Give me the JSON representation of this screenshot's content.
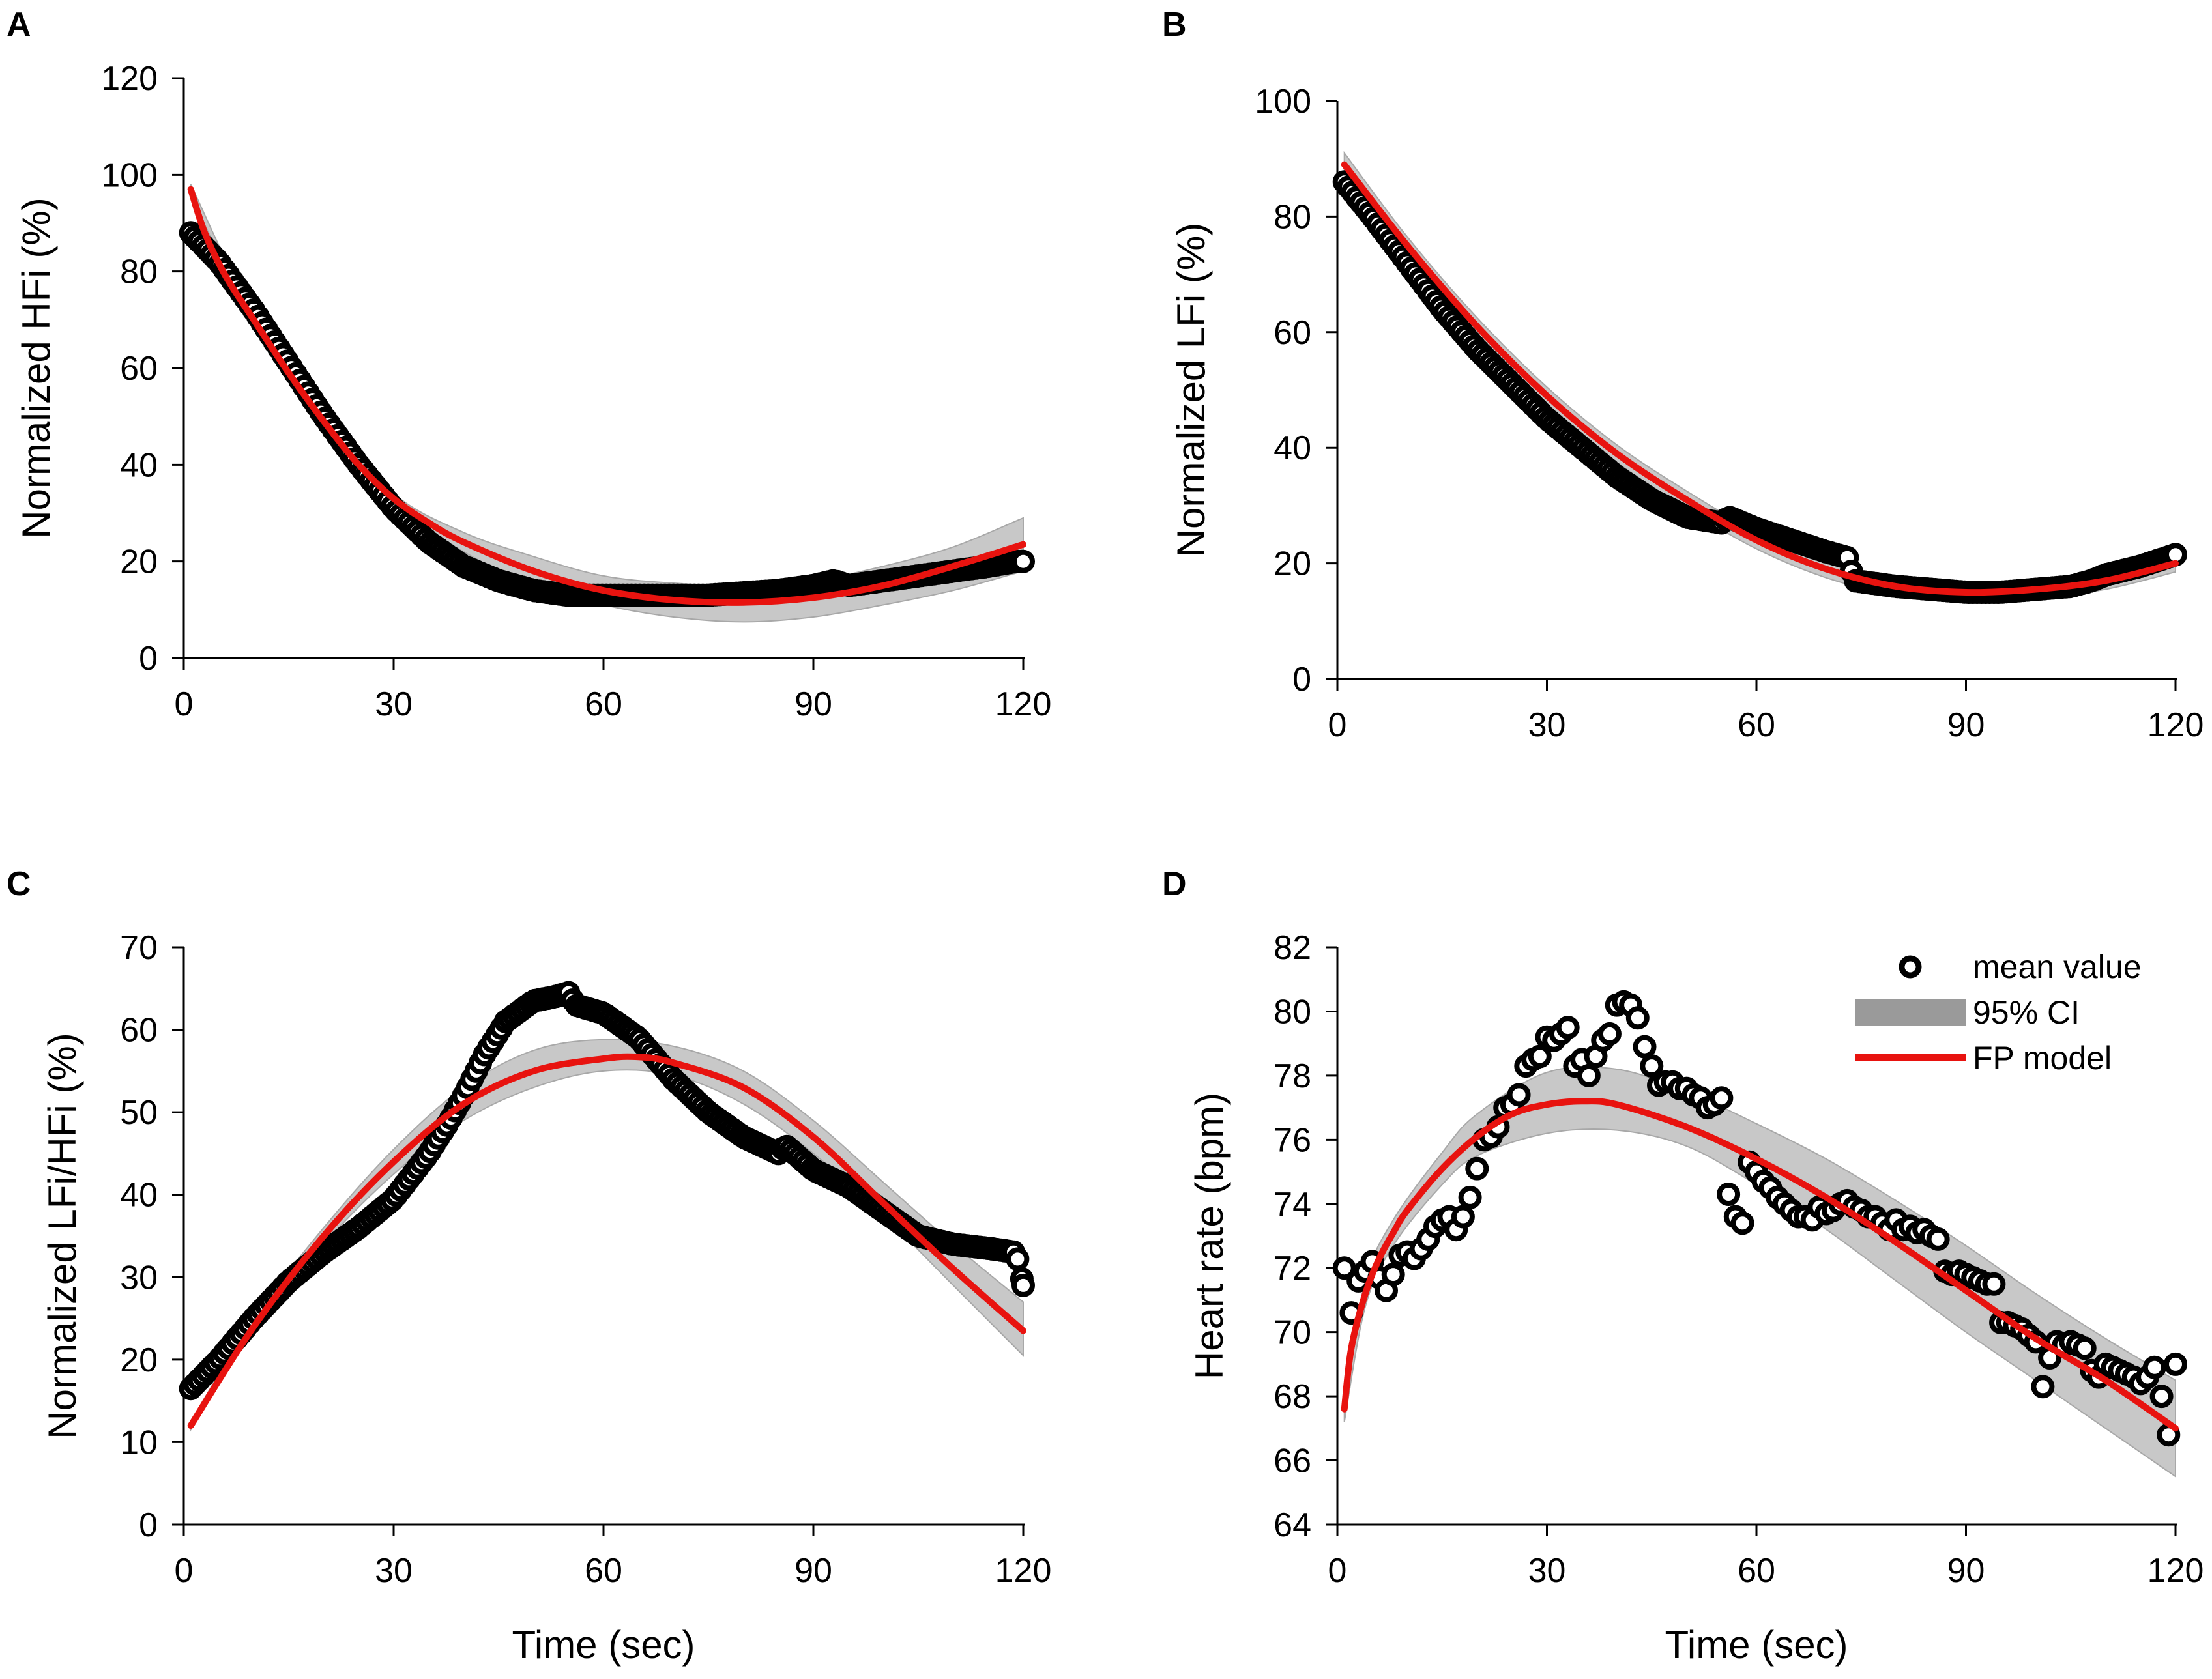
{
  "figure": {
    "description_free": true
  },
  "colors": {
    "model_line": "#e8130f",
    "ci_band": "#c8c8c8",
    "ci_legend": "#9a9a9a",
    "marker_stroke": "#000000",
    "marker_fill": "#ffffff",
    "axis": "#000000"
  },
  "legend": {
    "mean": "mean value",
    "ci": "95% CI",
    "model": "FP model"
  },
  "chart_data": [
    {
      "id": "A",
      "letter": "A",
      "type": "scatter",
      "title": "",
      "xlabel": "",
      "ylabel": "Normalized HFi  (%)",
      "xlim": [
        0,
        120
      ],
      "ylim": [
        0,
        120
      ],
      "xticks": [
        0,
        30,
        60,
        90,
        120
      ],
      "yticks": [
        0,
        20,
        40,
        60,
        80,
        100,
        120
      ],
      "series": [
        {
          "name": "mean value",
          "kind": "markers",
          "x": [
            1,
            5,
            10,
            15,
            20,
            25,
            30,
            35,
            40,
            45,
            50,
            55,
            60,
            65,
            70,
            75,
            80,
            85,
            90,
            93,
            95,
            100,
            105,
            110,
            115,
            119,
            120
          ],
          "y": [
            88,
            82,
            72,
            61,
            50,
            40,
            31,
            24,
            19,
            16,
            14,
            13,
            13,
            13,
            13,
            13,
            13.5,
            14,
            15,
            16,
            15,
            16,
            17,
            18,
            19,
            20,
            20
          ]
        },
        {
          "name": "FP model",
          "kind": "line",
          "x": [
            1,
            3,
            6,
            10,
            15,
            20,
            25,
            30,
            35,
            40,
            50,
            60,
            70,
            80,
            90,
            100,
            110,
            120
          ],
          "y": [
            97,
            88,
            79,
            70,
            59,
            49,
            40,
            33,
            28,
            24,
            18,
            14,
            12,
            11.5,
            12.5,
            15,
            19,
            23.5
          ]
        },
        {
          "name": "95% CI",
          "kind": "band",
          "x": [
            1,
            10,
            20,
            30,
            40,
            50,
            60,
            70,
            80,
            90,
            100,
            110,
            120
          ],
          "lower": [
            96,
            69,
            48,
            32,
            22,
            15,
            11,
            8.5,
            7.5,
            8.5,
            11,
            14,
            18
          ],
          "upper": [
            98,
            71,
            50,
            34,
            26,
            21,
            17,
            15.5,
            15,
            16,
            19,
            23,
            29
          ]
        }
      ]
    },
    {
      "id": "B",
      "letter": "B",
      "type": "scatter",
      "title": "",
      "xlabel": "",
      "ylabel": "Normalized LFi (%)",
      "xlim": [
        0,
        120
      ],
      "ylim": [
        0,
        100
      ],
      "xticks": [
        0,
        30,
        60,
        90,
        120
      ],
      "yticks": [
        0,
        20,
        40,
        60,
        80,
        100
      ],
      "series": [
        {
          "name": "mean value",
          "kind": "markers",
          "x": [
            1,
            5,
            10,
            15,
            20,
            25,
            30,
            35,
            40,
            45,
            50,
            55,
            56,
            60,
            65,
            70,
            73,
            74,
            80,
            85,
            90,
            95,
            100,
            105,
            108,
            110,
            115,
            120
          ],
          "y": [
            86,
            80,
            72,
            64,
            57,
            51,
            45,
            40,
            35,
            31,
            28,
            27,
            28,
            26,
            24,
            22,
            21,
            17,
            16,
            15.5,
            15,
            15,
            15.5,
            16,
            17,
            18,
            19.5,
            21.5
          ]
        },
        {
          "name": "FP model",
          "kind": "line",
          "x": [
            1,
            10,
            20,
            30,
            40,
            50,
            60,
            70,
            80,
            90,
            100,
            110,
            120
          ],
          "y": [
            89,
            75,
            61,
            49,
            39,
            31,
            24,
            19,
            16,
            15,
            15.5,
            17,
            20
          ]
        },
        {
          "name": "95% CI",
          "kind": "band",
          "x": [
            1,
            10,
            20,
            30,
            40,
            50,
            60,
            70,
            80,
            90,
            100,
            110,
            120
          ],
          "lower": [
            87,
            73.5,
            59.5,
            47.5,
            37.5,
            29.5,
            22.5,
            17.5,
            14.5,
            13.5,
            14,
            15.5,
            18.5
          ],
          "upper": [
            91,
            76.5,
            62.5,
            50.5,
            40.5,
            32.5,
            25.5,
            20.5,
            17.5,
            16.5,
            17,
            18.5,
            21.5
          ]
        }
      ]
    },
    {
      "id": "C",
      "letter": "C",
      "type": "scatter",
      "title": "",
      "xlabel": "Time (sec)",
      "ylabel": "Normalized LFi/HFi  (%)",
      "xlim": [
        0,
        120
      ],
      "ylim": [
        0,
        70
      ],
      "xticks": [
        0,
        30,
        60,
        90,
        120
      ],
      "yticks": [
        0,
        10,
        20,
        30,
        40,
        50,
        60,
        70
      ],
      "series": [
        {
          "name": "mean value",
          "kind": "markers",
          "x": [
            1,
            5,
            10,
            15,
            20,
            25,
            30,
            35,
            38,
            40,
            43,
            46,
            50,
            53,
            55,
            56,
            60,
            65,
            70,
            75,
            80,
            85,
            86,
            90,
            95,
            100,
            105,
            110,
            115,
            119,
            120
          ],
          "y": [
            16.5,
            20,
            25,
            29.5,
            33,
            36,
            39.5,
            45,
            49,
            52,
            57,
            61,
            63.5,
            64,
            64.5,
            63,
            62,
            59,
            54,
            50,
            47,
            45,
            46,
            43,
            41,
            38,
            35,
            34,
            33.5,
            33,
            29
          ]
        },
        {
          "name": "FP model",
          "kind": "line",
          "x": [
            1,
            10,
            20,
            30,
            40,
            50,
            60,
            65,
            70,
            80,
            90,
            100,
            110,
            120
          ],
          "y": [
            12,
            24,
            35,
            44,
            51,
            55,
            56.5,
            56.7,
            56,
            53,
            47,
            39,
            31,
            23.5
          ]
        },
        {
          "name": "95% CI",
          "kind": "band",
          "x": [
            1,
            10,
            20,
            30,
            40,
            50,
            60,
            70,
            80,
            90,
            100,
            110,
            120
          ],
          "lower": [
            11.5,
            23.5,
            34,
            42.5,
            49,
            53,
            55,
            54.5,
            51,
            45,
            37.5,
            29,
            20.5
          ],
          "upper": [
            12.5,
            25,
            36,
            45.5,
            53,
            57.5,
            58.8,
            58,
            55,
            49,
            41.5,
            34,
            27
          ]
        }
      ]
    },
    {
      "id": "D",
      "letter": "D",
      "type": "scatter",
      "title": "",
      "xlabel": "Time (sec)",
      "ylabel": "Heart rate (bpm)",
      "xlim": [
        0,
        120
      ],
      "ylim": [
        64,
        82
      ],
      "xticks": [
        0,
        30,
        60,
        90,
        120
      ],
      "yticks": [
        64,
        66,
        68,
        70,
        72,
        74,
        76,
        78,
        80,
        82
      ],
      "legend_position": "top-right",
      "series": [
        {
          "name": "mean value",
          "kind": "markers",
          "x": [
            1,
            2,
            3,
            4,
            5,
            6,
            7,
            8,
            9,
            10,
            11,
            12,
            13,
            14,
            15,
            16,
            17,
            18,
            19,
            20,
            21,
            22,
            23,
            24,
            25,
            26,
            27,
            28,
            29,
            30,
            31,
            32,
            33,
            34,
            35,
            36,
            37,
            38,
            39,
            40,
            41,
            42,
            43,
            44,
            45,
            46,
            47,
            48,
            49,
            50,
            51,
            52,
            53,
            54,
            55,
            56,
            57,
            58,
            59,
            60,
            61,
            62,
            63,
            64,
            65,
            66,
            67,
            68,
            69,
            70,
            71,
            72,
            73,
            74,
            75,
            76,
            77,
            78,
            79,
            80,
            81,
            82,
            83,
            84,
            85,
            86,
            87,
            88,
            89,
            90,
            91,
            92,
            93,
            94,
            95,
            96,
            97,
            98,
            99,
            100,
            101,
            102,
            103,
            104,
            105,
            106,
            107,
            108,
            109,
            110,
            111,
            112,
            113,
            114,
            115,
            116,
            117,
            118,
            119,
            120
          ],
          "y": [
            72.0,
            70.6,
            71.6,
            71.9,
            72.2,
            71.7,
            71.3,
            71.8,
            72.4,
            72.5,
            72.3,
            72.6,
            72.9,
            73.3,
            73.5,
            73.6,
            73.2,
            73.6,
            74.2,
            75.1,
            76.0,
            76.1,
            76.4,
            77.0,
            77.1,
            77.4,
            78.3,
            78.5,
            78.6,
            79.2,
            79.1,
            79.3,
            79.5,
            78.3,
            78.5,
            78.0,
            78.6,
            79.1,
            79.3,
            80.2,
            80.3,
            80.2,
            79.8,
            78.9,
            78.3,
            77.7,
            77.8,
            77.8,
            77.6,
            77.6,
            77.4,
            77.3,
            77.0,
            77.1,
            77.3,
            74.3,
            73.6,
            73.4,
            75.3,
            75.0,
            74.7,
            74.5,
            74.2,
            74.0,
            73.8,
            73.6,
            73.6,
            73.5,
            73.9,
            73.7,
            73.8,
            74.0,
            74.1,
            73.9,
            73.8,
            73.6,
            73.6,
            73.4,
            73.2,
            73.5,
            73.2,
            73.3,
            73.1,
            73.2,
            73.0,
            72.9,
            71.9,
            71.8,
            71.9,
            71.8,
            71.7,
            71.6,
            71.5,
            71.5,
            70.3,
            70.3,
            70.2,
            70.1,
            69.9,
            69.7,
            68.3,
            69.2,
            69.7,
            69.6,
            69.7,
            69.6,
            69.5,
            68.8,
            68.6,
            69.0,
            68.9,
            68.8,
            68.7,
            68.6,
            68.4,
            68.6,
            68.9,
            68.0,
            66.8,
            69.0
          ],
          "xlist_override": null
        },
        {
          "name": "FP model",
          "kind": "line",
          "x": [
            1,
            2,
            4,
            6,
            8,
            10,
            15,
            20,
            25,
            30,
            35,
            40,
            50,
            60,
            70,
            80,
            90,
            100,
            110,
            120
          ],
          "y": [
            67.6,
            69.5,
            71.2,
            72.3,
            73.1,
            73.8,
            75.1,
            76.1,
            76.8,
            77.1,
            77.2,
            77.1,
            76.4,
            75.4,
            74.2,
            72.8,
            71.3,
            69.8,
            68.5,
            67.0
          ]
        },
        {
          "name": "95% CI",
          "kind": "band",
          "x": [
            1,
            4,
            8,
            15,
            20,
            30,
            40,
            50,
            60,
            70,
            80,
            90,
            100,
            110,
            120
          ],
          "lower": [
            67.2,
            70.8,
            72.7,
            74.6,
            75.5,
            76.2,
            76.3,
            75.8,
            74.6,
            73.2,
            71.6,
            70.0,
            68.5,
            67.0,
            65.5
          ],
          "upper": [
            68.0,
            71.6,
            73.5,
            75.6,
            76.8,
            78.1,
            78.2,
            77.5,
            76.5,
            75.4,
            74.1,
            72.7,
            71.2,
            69.8,
            68.5
          ]
        }
      ]
    }
  ]
}
